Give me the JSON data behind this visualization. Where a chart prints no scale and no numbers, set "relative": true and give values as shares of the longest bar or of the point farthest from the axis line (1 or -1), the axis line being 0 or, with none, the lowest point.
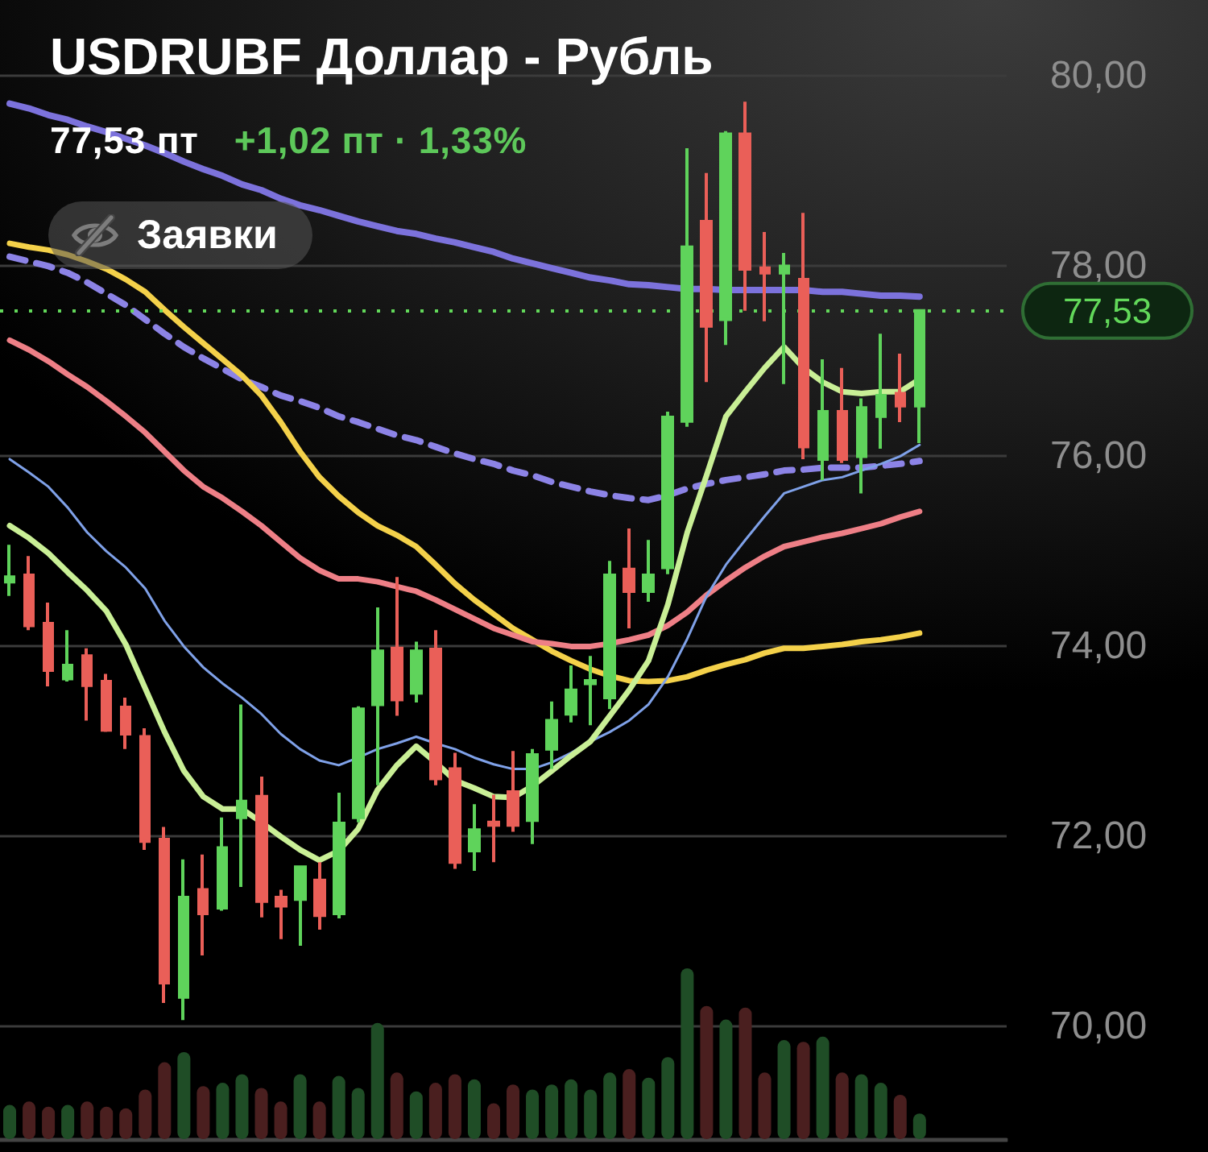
{
  "chart_data": [
    {
      "type": "candlestick",
      "title": "USDRUBF Доллар - Рубль",
      "subtitle": "77,53 пт",
      "annotations": [
        "+1,02 пт · 1,33%",
        "Заявки"
      ],
      "categories": [
        null,
        null,
        null,
        null,
        null,
        null,
        null,
        null,
        null,
        null,
        null,
        null,
        null,
        null,
        null,
        null,
        null,
        null,
        null,
        null,
        null,
        null,
        null,
        null,
        null,
        null,
        null,
        null,
        null,
        null,
        null,
        null,
        null,
        null,
        null,
        null,
        null,
        null,
        null,
        null,
        null,
        null,
        null,
        null,
        null,
        null,
        null,
        null
      ],
      "ohlc": [
        [
          74.68,
          75.07,
          74.53,
          74.73
        ],
        [
          74.75,
          74.95,
          74.17,
          74.22
        ],
        [
          74.24,
          74.46,
          73.58,
          73.75
        ],
        [
          73.66,
          74.17,
          73.63,
          73.8
        ],
        [
          73.9,
          73.98,
          73.22,
          73.59
        ],
        [
          73.63,
          73.71,
          73.1,
          73.12
        ],
        [
          73.36,
          73.46,
          72.92,
          73.08
        ],
        [
          73.05,
          73.14,
          71.86,
          71.95
        ],
        [
          71.97,
          72.1,
          70.25,
          70.46
        ],
        [
          70.31,
          71.76,
          70.07,
          71.36
        ],
        [
          71.44,
          71.81,
          70.75,
          71.19
        ],
        [
          71.25,
          72.2,
          71.22,
          71.88
        ],
        [
          72.2,
          73.39,
          71.47,
          72.37
        ],
        [
          72.42,
          72.63,
          71.15,
          71.32
        ],
        [
          71.36,
          71.44,
          70.92,
          71.27
        ],
        [
          71.34,
          71.69,
          70.85,
          71.68
        ],
        [
          71.54,
          71.73,
          71.02,
          71.17
        ],
        [
          71.19,
          72.46,
          71.14,
          72.14
        ],
        [
          72.2,
          73.37,
          72.15,
          73.34
        ],
        [
          73.39,
          74.41,
          72.54,
          73.95
        ],
        [
          73.98,
          74.73,
          73.27,
          73.44
        ],
        [
          73.51,
          74.05,
          73.41,
          73.95
        ],
        [
          73.97,
          74.17,
          72.54,
          72.61
        ],
        [
          72.71,
          72.88,
          71.66,
          71.73
        ],
        [
          71.85,
          72.34,
          71.64,
          72.07
        ],
        [
          72.15,
          72.44,
          71.73,
          72.12
        ],
        [
          72.47,
          72.9,
          72.05,
          72.12
        ],
        [
          72.17,
          72.92,
          71.92,
          72.86
        ],
        [
          72.92,
          73.42,
          72.71,
          73.22
        ],
        [
          73.29,
          73.8,
          73.2,
          73.54
        ],
        [
          73.61,
          73.9,
          73.17,
          73.64
        ],
        [
          73.46,
          74.9,
          73.34,
          74.75
        ],
        [
          74.81,
          75.24,
          74.19,
          74.58
        ],
        [
          74.58,
          75.12,
          74.47,
          74.75
        ],
        [
          74.83,
          76.47,
          74.76,
          76.41
        ],
        [
          76.37,
          79.24,
          76.31,
          78.2
        ],
        [
          78.47,
          78.98,
          76.78,
          77.37
        ],
        [
          77.44,
          79.42,
          77.17,
          79.39
        ],
        [
          79.39,
          79.73,
          77.53,
          77.97
        ],
        [
          77.98,
          78.36,
          77.42,
          77.93
        ],
        [
          77.93,
          78.14,
          76.76,
          78.0
        ],
        [
          77.86,
          78.56,
          75.97,
          76.1
        ],
        [
          75.97,
          77.02,
          75.75,
          76.47
        ],
        [
          76.47,
          76.93,
          75.93,
          75.97
        ],
        [
          76.0,
          76.61,
          75.61,
          76.51
        ],
        [
          76.42,
          77.29,
          76.08,
          76.64
        ],
        [
          76.66,
          77.08,
          76.36,
          76.53
        ],
        [
          76.53,
          77.53,
          76.14,
          77.53
        ]
      ],
      "colors": [
        "#5fd35b",
        "#ea5f58",
        "#ea5f58",
        "#5fd35b",
        "#ea5f58",
        "#ea5f58",
        "#ea5f58",
        "#ea5f58",
        "#ea5f58",
        "#5fd35b",
        "#ea5f58",
        "#5fd35b",
        "#5fd35b",
        "#ea5f58",
        "#ea5f58",
        "#5fd35b",
        "#ea5f58",
        "#5fd35b",
        "#5fd35b",
        "#5fd35b",
        "#ea5f58",
        "#5fd35b",
        "#ea5f58",
        "#ea5f58",
        "#5fd35b",
        "#ea5f58",
        "#ea5f58",
        "#5fd35b",
        "#5fd35b",
        "#5fd35b",
        "#5fd35b",
        "#5fd35b",
        "#ea5f58",
        "#5fd35b",
        "#5fd35b",
        "#5fd35b",
        "#ea5f58",
        "#5fd35b",
        "#ea5f58",
        "#ea5f58",
        "#5fd35b",
        "#ea5f58",
        "#5fd35b",
        "#ea5f58",
        "#5fd35b",
        "#5fd35b",
        "#ea5f58",
        "#5fd35b"
      ],
      "series": [
        {
          "type": "line",
          "color": "#7c72dc",
          "line_style": "solid",
          "values": [
            79.71,
            79.66,
            79.59,
            79.54,
            79.47,
            79.41,
            79.34,
            79.27,
            79.19,
            79.1,
            79.02,
            78.95,
            78.86,
            78.8,
            78.71,
            78.64,
            78.59,
            78.53,
            78.47,
            78.42,
            78.37,
            78.34,
            78.29,
            78.25,
            78.2,
            78.15,
            78.08,
            78.03,
            77.98,
            77.93,
            77.88,
            77.85,
            77.81,
            77.8,
            77.78,
            77.76,
            77.76,
            77.75,
            77.75,
            77.75,
            77.75,
            77.75,
            77.73,
            77.73,
            77.71,
            77.69,
            77.69,
            77.68
          ]
        },
        {
          "type": "line",
          "color": "#8c83e6",
          "line_style": "dashed",
          "values": [
            78.1,
            78.05,
            78.0,
            77.93,
            77.83,
            77.71,
            77.59,
            77.44,
            77.29,
            77.15,
            77.03,
            76.92,
            76.81,
            76.73,
            76.64,
            76.58,
            76.51,
            76.42,
            76.36,
            76.29,
            76.22,
            76.17,
            76.1,
            76.03,
            75.97,
            75.92,
            75.85,
            75.8,
            75.73,
            75.68,
            75.63,
            75.59,
            75.56,
            75.54,
            75.59,
            75.66,
            75.71,
            75.75,
            75.78,
            75.81,
            75.85,
            75.86,
            75.88,
            75.88,
            75.88,
            75.9,
            75.92,
            75.95
          ]
        },
        {
          "type": "line",
          "color": "#f4d14a",
          "line_style": "solid",
          "values": [
            78.24,
            78.2,
            78.17,
            78.12,
            78.05,
            77.97,
            77.86,
            77.73,
            77.54,
            77.36,
            77.19,
            77.02,
            76.85,
            76.64,
            76.36,
            76.05,
            75.78,
            75.58,
            75.41,
            75.27,
            75.17,
            75.05,
            74.86,
            74.66,
            74.49,
            74.34,
            74.19,
            74.07,
            73.95,
            73.85,
            73.76,
            73.69,
            73.64,
            73.63,
            73.64,
            73.68,
            73.75,
            73.81,
            73.86,
            73.93,
            73.98,
            73.98,
            74.0,
            74.02,
            74.05,
            74.07,
            74.1,
            74.14
          ]
        },
        {
          "type": "line",
          "color": "#ee7f86",
          "line_style": "solid",
          "values": [
            77.22,
            77.12,
            77.0,
            76.86,
            76.73,
            76.58,
            76.42,
            76.25,
            76.05,
            75.85,
            75.68,
            75.56,
            75.42,
            75.27,
            75.1,
            74.93,
            74.8,
            74.71,
            74.71,
            74.68,
            74.63,
            74.58,
            74.49,
            74.39,
            74.29,
            74.19,
            74.12,
            74.05,
            74.03,
            74.0,
            74.0,
            74.03,
            74.07,
            74.12,
            74.22,
            74.36,
            74.54,
            74.69,
            74.83,
            74.95,
            75.05,
            75.1,
            75.15,
            75.19,
            75.24,
            75.29,
            75.36,
            75.42
          ]
        },
        {
          "type": "line",
          "color": "#7fa1e8",
          "line_style": "solid",
          "values": [
            75.97,
            75.83,
            75.68,
            75.46,
            75.2,
            75.0,
            74.83,
            74.61,
            74.27,
            74.0,
            73.78,
            73.61,
            73.46,
            73.29,
            73.08,
            72.92,
            72.8,
            72.75,
            72.83,
            72.92,
            72.98,
            73.05,
            72.98,
            72.92,
            72.83,
            72.76,
            72.71,
            72.71,
            72.78,
            72.88,
            73.0,
            73.1,
            73.22,
            73.39,
            73.68,
            74.08,
            74.53,
            74.86,
            75.12,
            75.37,
            75.61,
            75.68,
            75.75,
            75.78,
            75.85,
            75.92,
            76.0,
            76.12
          ]
        },
        {
          "type": "line",
          "color": "#c9ef96",
          "line_style": "solid",
          "values": [
            75.27,
            75.14,
            74.98,
            74.78,
            74.59,
            74.37,
            74.02,
            73.56,
            73.1,
            72.69,
            72.42,
            72.29,
            72.29,
            72.15,
            72.0,
            71.86,
            71.75,
            71.85,
            72.08,
            72.49,
            72.75,
            72.95,
            72.78,
            72.59,
            72.51,
            72.42,
            72.41,
            72.53,
            72.69,
            72.85,
            73.0,
            73.27,
            73.54,
            73.85,
            74.44,
            75.2,
            75.8,
            76.42,
            76.68,
            76.93,
            77.15,
            76.93,
            76.78,
            76.68,
            76.66,
            76.68,
            76.68,
            76.81
          ]
        }
      ],
      "ylim": [
        68.8,
        80.8
      ],
      "yticks": [
        {
          "value": 70,
          "label": "70,00"
        },
        {
          "value": 72,
          "label": "72,00"
        },
        {
          "value": 74,
          "label": "74,00"
        },
        {
          "value": 76,
          "label": "76,00"
        },
        {
          "value": 78,
          "label": "78,00"
        },
        {
          "value": 80,
          "label": "80,00"
        }
      ],
      "ref_lines": [
        {
          "axis": "y",
          "value": 77.53,
          "label": "77,53",
          "color": "#62d85a",
          "line_style": "dotted"
        }
      ],
      "grid": "y",
      "marker": "none",
      "tick_labels": "y"
    },
    {
      "type": "bar",
      "relative": true,
      "tick_labels": false,
      "categories": [
        null,
        null,
        null,
        null,
        null,
        null,
        null,
        null,
        null,
        null,
        null,
        null,
        null,
        null,
        null,
        null,
        null,
        null,
        null,
        null,
        null,
        null,
        null,
        null,
        null,
        null,
        null,
        null,
        null,
        null,
        null,
        null,
        null,
        null,
        null,
        null,
        null,
        null,
        null,
        null,
        null,
        null,
        null,
        null,
        null,
        null,
        null,
        null
      ],
      "values": [
        0.2,
        0.22,
        0.19,
        0.2,
        0.22,
        0.19,
        0.18,
        0.29,
        0.45,
        0.51,
        0.31,
        0.33,
        0.38,
        0.3,
        0.22,
        0.38,
        0.22,
        0.37,
        0.3,
        0.68,
        0.39,
        0.28,
        0.33,
        0.38,
        0.35,
        0.21,
        0.32,
        0.29,
        0.32,
        0.35,
        0.29,
        0.39,
        0.41,
        0.36,
        0.48,
        1,
        0.78,
        0.7,
        0.77,
        0.39,
        0.58,
        0.57,
        0.6,
        0.39,
        0.38,
        0.33,
        0.26,
        0.15
      ],
      "colors": [
        "#1f4d26",
        "#4a1f1f",
        "#4a1f1f",
        "#1f4d26",
        "#4a1f1f",
        "#4a1f1f",
        "#4a1f1f",
        "#4a1f1f",
        "#4a1f1f",
        "#1f4d26",
        "#4a1f1f",
        "#1f4d26",
        "#1f4d26",
        "#4a1f1f",
        "#4a1f1f",
        "#1f4d26",
        "#4a1f1f",
        "#1f4d26",
        "#1f4d26",
        "#1f4d26",
        "#4a1f1f",
        "#1f4d26",
        "#4a1f1f",
        "#4a1f1f",
        "#1f4d26",
        "#4a1f1f",
        "#4a1f1f",
        "#1f4d26",
        "#1f4d26",
        "#1f4d26",
        "#1f4d26",
        "#1f4d26",
        "#4a1f1f",
        "#1f4d26",
        "#1f4d26",
        "#1f4d26",
        "#4a1f1f",
        "#1f4d26",
        "#4a1f1f",
        "#4a1f1f",
        "#1f4d26",
        "#4a1f1f",
        "#1f4d26",
        "#4a1f1f",
        "#1f4d26",
        "#1f4d26",
        "#4a1f1f",
        "#1f4d26"
      ]
    }
  ]
}
